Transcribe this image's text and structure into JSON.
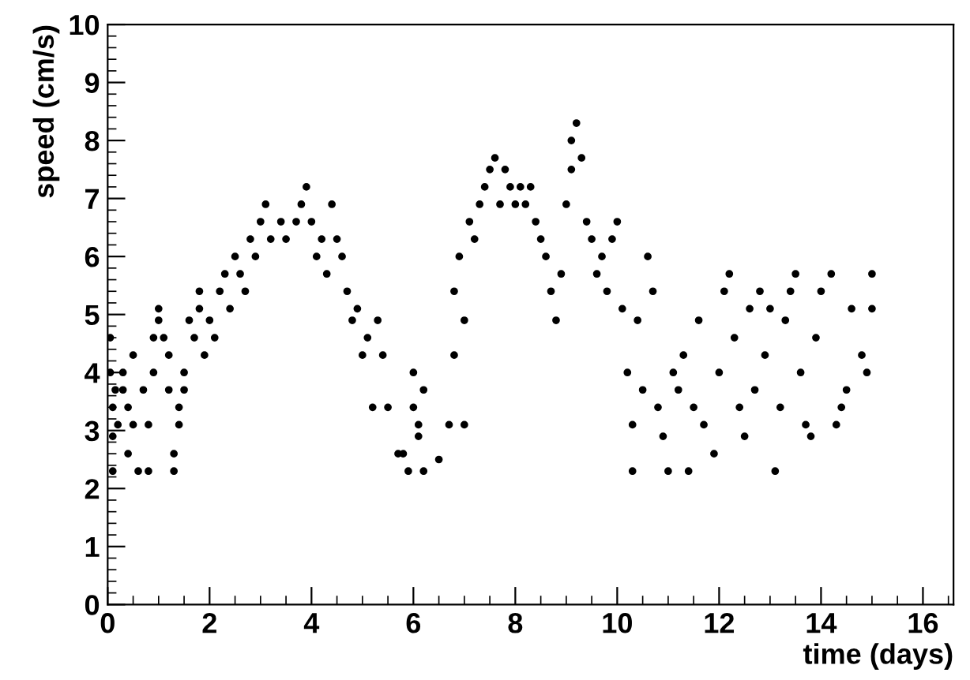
{
  "chart_data": {
    "type": "scatter",
    "xlabel": "time (days)",
    "ylabel": "speed (cm/s)",
    "xlim": [
      0,
      16.6
    ],
    "ylim": [
      0,
      10
    ],
    "xticks": [
      0,
      2,
      4,
      6,
      8,
      10,
      12,
      14,
      16
    ],
    "yticks": [
      0,
      1,
      2,
      3,
      4,
      5,
      6,
      7,
      8,
      9,
      10
    ],
    "grid": false,
    "legend": false,
    "marker": "circle",
    "series": [
      {
        "color": "#000000",
        "x": [
          0.05,
          0.05,
          0.1,
          0.1,
          0.1,
          0.15,
          0.2,
          0.3,
          0.3,
          0.4,
          0.4,
          0.5,
          0.5,
          0.6,
          0.7,
          0.8,
          0.8,
          0.9,
          0.9,
          1.0,
          1.0,
          1.1,
          1.2,
          1.2,
          1.3,
          1.3,
          1.4,
          1.4,
          1.5,
          1.5,
          1.6,
          1.7,
          1.8,
          1.8,
          1.9,
          2.0,
          2.1,
          2.2,
          2.3,
          2.4,
          2.5,
          2.6,
          2.7,
          2.8,
          2.9,
          3.0,
          3.1,
          3.2,
          3.4,
          3.5,
          3.7,
          3.8,
          3.9,
          4.0,
          4.1,
          4.2,
          4.3,
          4.4,
          4.5,
          4.6,
          4.7,
          4.8,
          4.9,
          5.0,
          5.1,
          5.2,
          5.3,
          5.4,
          5.5,
          5.7,
          5.8,
          5.9,
          6.0,
          6.0,
          6.1,
          6.1,
          6.2,
          6.2,
          6.5,
          6.7,
          6.8,
          6.8,
          6.9,
          7.0,
          7.0,
          7.1,
          7.2,
          7.3,
          7.4,
          7.5,
          7.6,
          7.7,
          7.8,
          7.9,
          8.0,
          8.1,
          8.2,
          8.3,
          8.4,
          8.5,
          8.6,
          8.7,
          8.8,
          8.9,
          9.0,
          9.1,
          9.1,
          9.2,
          9.3,
          9.4,
          9.5,
          9.6,
          9.7,
          9.8,
          9.9,
          10.0,
          10.1,
          10.2,
          10.3,
          10.3,
          10.4,
          10.5,
          10.6,
          10.7,
          10.8,
          10.9,
          11.0,
          11.1,
          11.2,
          11.3,
          11.4,
          11.5,
          11.6,
          11.7,
          11.9,
          12.0,
          12.1,
          12.2,
          12.3,
          12.4,
          12.5,
          12.6,
          12.7,
          12.8,
          12.9,
          13.0,
          13.1,
          13.2,
          13.3,
          13.4,
          13.5,
          13.6,
          13.7,
          13.8,
          13.9,
          14.0,
          14.2,
          14.3,
          14.4,
          14.5,
          14.6,
          14.8,
          14.9,
          15.0,
          15.0
        ],
        "values": [
          4.6,
          4.0,
          3.4,
          2.9,
          2.3,
          3.7,
          3.1,
          3.7,
          4.0,
          3.4,
          2.6,
          3.1,
          4.3,
          2.3,
          3.7,
          2.3,
          3.1,
          4.6,
          4.0,
          4.9,
          5.1,
          4.6,
          4.3,
          3.7,
          2.3,
          2.6,
          3.1,
          3.4,
          4.0,
          3.7,
          4.9,
          4.6,
          5.1,
          5.4,
          4.3,
          4.9,
          4.6,
          5.4,
          5.7,
          5.1,
          6.0,
          5.7,
          5.4,
          6.3,
          6.0,
          6.6,
          6.9,
          6.3,
          6.6,
          6.3,
          6.6,
          6.9,
          7.2,
          6.6,
          6.0,
          6.3,
          5.7,
          6.9,
          6.3,
          6.0,
          5.4,
          4.9,
          5.1,
          4.3,
          4.6,
          3.4,
          4.9,
          4.3,
          3.4,
          2.6,
          2.6,
          2.3,
          4.0,
          3.4,
          3.1,
          2.9,
          2.3,
          3.7,
          2.5,
          3.1,
          4.3,
          5.4,
          6.0,
          3.1,
          4.9,
          6.6,
          6.3,
          6.9,
          7.2,
          7.5,
          7.7,
          6.9,
          7.5,
          7.2,
          6.9,
          7.2,
          6.9,
          7.2,
          6.6,
          6.3,
          6.0,
          5.4,
          4.9,
          5.7,
          6.9,
          7.5,
          8.0,
          8.3,
          7.7,
          6.6,
          6.3,
          5.7,
          6.0,
          5.4,
          6.3,
          6.6,
          5.1,
          4.0,
          3.1,
          2.3,
          4.9,
          3.7,
          6.0,
          5.4,
          3.4,
          2.9,
          2.3,
          4.0,
          3.7,
          4.3,
          2.3,
          3.4,
          4.9,
          3.1,
          2.6,
          4.0,
          5.4,
          5.7,
          4.6,
          3.4,
          2.9,
          5.1,
          3.7,
          5.4,
          4.3,
          5.1,
          2.3,
          3.4,
          4.9,
          5.4,
          5.7,
          4.0,
          3.1,
          2.9,
          4.6,
          5.4,
          5.7,
          3.1,
          3.4,
          3.7,
          5.1,
          4.3,
          4.0,
          5.7,
          5.1
        ]
      }
    ]
  }
}
